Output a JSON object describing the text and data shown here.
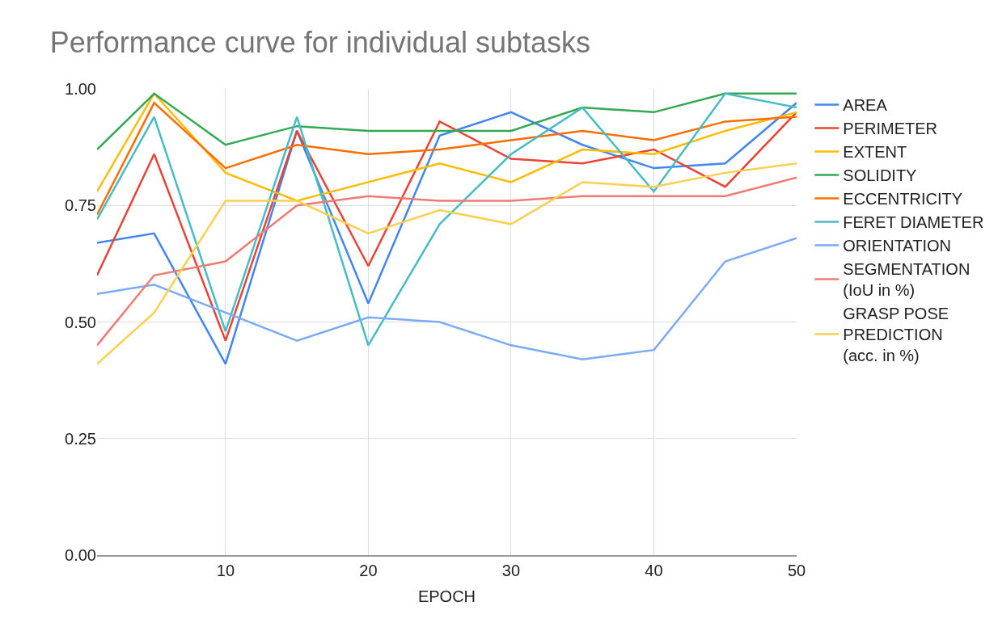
{
  "chart_data": {
    "type": "line",
    "title": "Performance curve for individual subtasks",
    "xlabel": "EPOCH",
    "x": [
      1,
      5,
      10,
      15,
      20,
      25,
      30,
      35,
      40,
      45,
      50
    ],
    "xlim": [
      1,
      50
    ],
    "xticks": [
      10,
      20,
      30,
      40,
      50
    ],
    "ylim": [
      0,
      1
    ],
    "yticks": [
      {
        "value": 0,
        "label": "0.00"
      },
      {
        "value": 0.25,
        "label": "0.25"
      },
      {
        "value": 0.5,
        "label": "0.50"
      },
      {
        "value": 0.75,
        "label": "0.75"
      },
      {
        "value": 1,
        "label": "1.00"
      }
    ],
    "grid": true,
    "legend": "right",
    "marker": "none",
    "line_style": "solid",
    "series": [
      {
        "name": "AREA",
        "color": "#4285f4",
        "values": [
          0.67,
          0.69,
          0.41,
          0.91,
          0.54,
          0.9,
          0.95,
          0.88,
          0.83,
          0.84,
          0.97
        ]
      },
      {
        "name": "PERIMETER",
        "color": "#ea4335",
        "values": [
          0.6,
          0.86,
          0.46,
          0.91,
          0.62,
          0.93,
          0.85,
          0.84,
          0.87,
          0.79,
          0.95
        ]
      },
      {
        "name": "EXTENT",
        "color": "#fbbc04",
        "values": [
          0.78,
          0.99,
          0.82,
          0.76,
          0.8,
          0.84,
          0.8,
          0.87,
          0.86,
          0.91,
          0.95
        ]
      },
      {
        "name": "SOLIDITY",
        "color": "#34a853",
        "values": [
          0.87,
          0.99,
          0.88,
          0.92,
          0.91,
          0.91,
          0.91,
          0.96,
          0.95,
          0.99,
          0.99
        ]
      },
      {
        "name": "ECCENTRICITY",
        "color": "#ff6d01",
        "values": [
          0.73,
          0.97,
          0.83,
          0.88,
          0.86,
          0.87,
          0.89,
          0.91,
          0.89,
          0.93,
          0.94
        ]
      },
      {
        "name": "FERET DIAMETER",
        "color": "#46bdc6",
        "values": [
          0.72,
          0.94,
          0.48,
          0.94,
          0.45,
          0.71,
          0.86,
          0.96,
          0.78,
          0.99,
          0.96
        ]
      },
      {
        "name": "ORIENTATION",
        "color": "#7baaf7",
        "values": [
          0.56,
          0.58,
          0.52,
          0.46,
          0.51,
          0.5,
          0.45,
          0.42,
          0.44,
          0.63,
          0.68
        ]
      },
      {
        "name": "SEGMENTATION (IoU in %)",
        "color": "#f07b72",
        "values": [
          0.45,
          0.6,
          0.63,
          0.75,
          0.77,
          0.76,
          0.76,
          0.77,
          0.77,
          0.77,
          0.81
        ]
      },
      {
        "name": "GRASP POSE PREDICTION (acc. in %)",
        "color": "#fcd04f",
        "values": [
          0.41,
          0.52,
          0.76,
          0.76,
          0.69,
          0.74,
          0.71,
          0.8,
          0.79,
          0.82,
          0.84
        ]
      }
    ]
  }
}
